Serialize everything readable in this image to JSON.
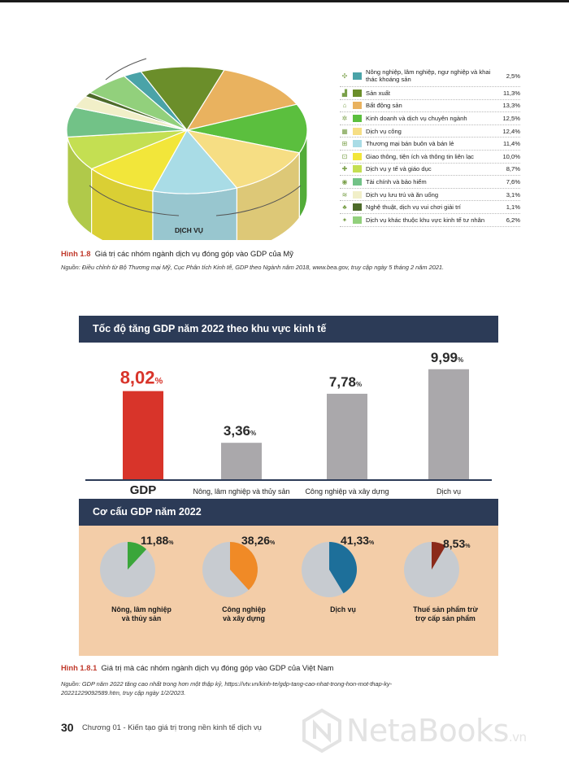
{
  "figure_1_8": {
    "pie_label": "DỊCH VỤ",
    "caption_num": "Hình 1.8",
    "caption_text": "Giá trị các nhóm ngành dịch vụ đóng góp vào GDP của Mỹ",
    "source": "Nguồn: Điều chỉnh từ Bộ Thương mại Mỹ, Cục Phân tích Kinh tế, GDP theo Ngành năm 2018, www.bea.gov, truy cập ngày 5 tháng 2 năm 2021.",
    "legend": [
      {
        "label": "Nông nghiệp, lâm nghiệp, ngư nghiệp và khai thác khoáng sản",
        "value": "2,5%",
        "color": "#4aa3a8",
        "icon": "sprout-icon"
      },
      {
        "label": "Sản xuất",
        "value": "11,3%",
        "color": "#6b8e2a",
        "icon": "factory-icon"
      },
      {
        "label": "Bất động sản",
        "value": "13,3%",
        "color": "#e9b25f",
        "icon": "house-icon"
      },
      {
        "label": "Kinh doanh và dịch vụ chuyên ngành",
        "value": "12,5%",
        "color": "#5bbf3e",
        "icon": "gear-icon"
      },
      {
        "label": "Dịch vụ công",
        "value": "12,4%",
        "color": "#f6de84",
        "icon": "building-icon"
      },
      {
        "label": "Thương mại bán buôn và bán lẻ",
        "value": "11,4%",
        "color": "#a9dce6",
        "icon": "cart-icon"
      },
      {
        "label": "Giao thông, tiện ích và thông tin liên lạc",
        "value": "10,0%",
        "color": "#f2e63a",
        "icon": "transport-icon"
      },
      {
        "label": "Dịch vụ y tế và giáo dục",
        "value": "8,7%",
        "color": "#c4df52",
        "icon": "health-icon"
      },
      {
        "label": "Tài chính và bảo hiểm",
        "value": "7,6%",
        "color": "#72c287",
        "icon": "finance-icon"
      },
      {
        "label": "Dịch vụ lưu trú và ăn uống",
        "value": "3,1%",
        "color": "#f1efc8",
        "icon": "food-icon"
      },
      {
        "label": "Nghệ thuật, dịch vụ vui chơi giải trí",
        "value": "1,1%",
        "color": "#4d6b2a",
        "icon": "art-icon"
      },
      {
        "label": "Dịch vụ khác thuộc khu vực kinh tế tư nhân",
        "value": "6,2%",
        "color": "#92d07c",
        "icon": "service-icon"
      }
    ]
  },
  "infographic": {
    "growth_title": "Tốc độ tăng GDP năm 2022 theo khu vực kinh tế",
    "structure_title": "Cơ cấu GDP năm 2022",
    "pies": [
      {
        "value": "11,88",
        "label1": "Nông, lâm nghiệp",
        "label2": "và thủy sản",
        "color": "#3aa63a"
      },
      {
        "value": "38,26",
        "label1": "Công nghiệp",
        "label2": "và xây dựng",
        "color": "#f08a26"
      },
      {
        "value": "41,33",
        "label1": "Dịch vụ",
        "label2": "",
        "color": "#1d6f9a"
      },
      {
        "value": "8,53",
        "label1": "Thuế sản phẩm trừ",
        "label2": "trợ cấp sản phẩm",
        "color": "#8b2a1a"
      }
    ],
    "caption_num": "Hình 1.8.1",
    "caption_text": "Giá trị mà các nhóm ngành dịch vụ đóng góp vào GDP của Việt Nam",
    "source": "Nguồn: GDP năm 2022 tăng cao nhất trong hơn một thập kỷ, https://vtv.vn/kinh-te/gdp-tang-cao-nhat-trong-hon-mot-thap-ky-20221229092589.htm, truy cập ngày 1/2/2023."
  },
  "chart_data": [
    {
      "type": "pie",
      "categories": [
        "Nông nghiệp, lâm nghiệp, ngư nghiệp và khai thác khoáng sản",
        "Sản xuất",
        "Bất động sản",
        "Kinh doanh và dịch vụ chuyên ngành",
        "Dịch vụ công",
        "Thương mại bán buôn và bán lẻ",
        "Giao thông, tiện ích và thông tin liên lạc",
        "Dịch vụ y tế và giáo dục",
        "Tài chính và bảo hiểm",
        "Dịch vụ lưu trú và ăn uống",
        "Nghệ thuật, dịch vụ vui chơi giải trí",
        "Dịch vụ khác thuộc khu vực kinh tế tư nhân"
      ],
      "values": [
        2.5,
        11.3,
        13.3,
        12.5,
        12.4,
        11.4,
        10.0,
        8.7,
        7.6,
        3.1,
        1.1,
        6.2
      ],
      "title": "",
      "legend": "right"
    },
    {
      "type": "bar",
      "categories": [
        "GDP",
        "Nông, lâm nghiệp và thủy sản",
        "Công nghiệp và xây dựng",
        "Dịch vụ"
      ],
      "values": [
        8.02,
        3.36,
        7.78,
        9.99
      ],
      "labels": [
        "8,02",
        "3,36",
        "7,78",
        "9,99"
      ],
      "unit": "%",
      "colors": [
        "#d8342a",
        "#aaa8ab",
        "#aaa8ab",
        "#aaa8ab"
      ],
      "title": "Tốc độ tăng GDP năm 2022 theo khu vực kinh tế",
      "ylim": [
        0,
        11
      ]
    },
    {
      "type": "pie",
      "categories": [
        "Nông, lâm nghiệp và thủy sản",
        "Công nghiệp và xây dựng",
        "Dịch vụ",
        "Thuế sản phẩm trừ trợ cấp sản phẩm"
      ],
      "values": [
        11.88,
        38.26,
        41.33,
        8.53
      ],
      "unit": "%",
      "title": "Cơ cấu GDP năm 2022"
    }
  ],
  "footer": {
    "page_number": "30",
    "chapter": "Chương 01 - Kiến tạo giá trị trong nền kinh tế dịch vụ",
    "watermark": "NetaBooks",
    "watermark_suffix": ".vn"
  }
}
